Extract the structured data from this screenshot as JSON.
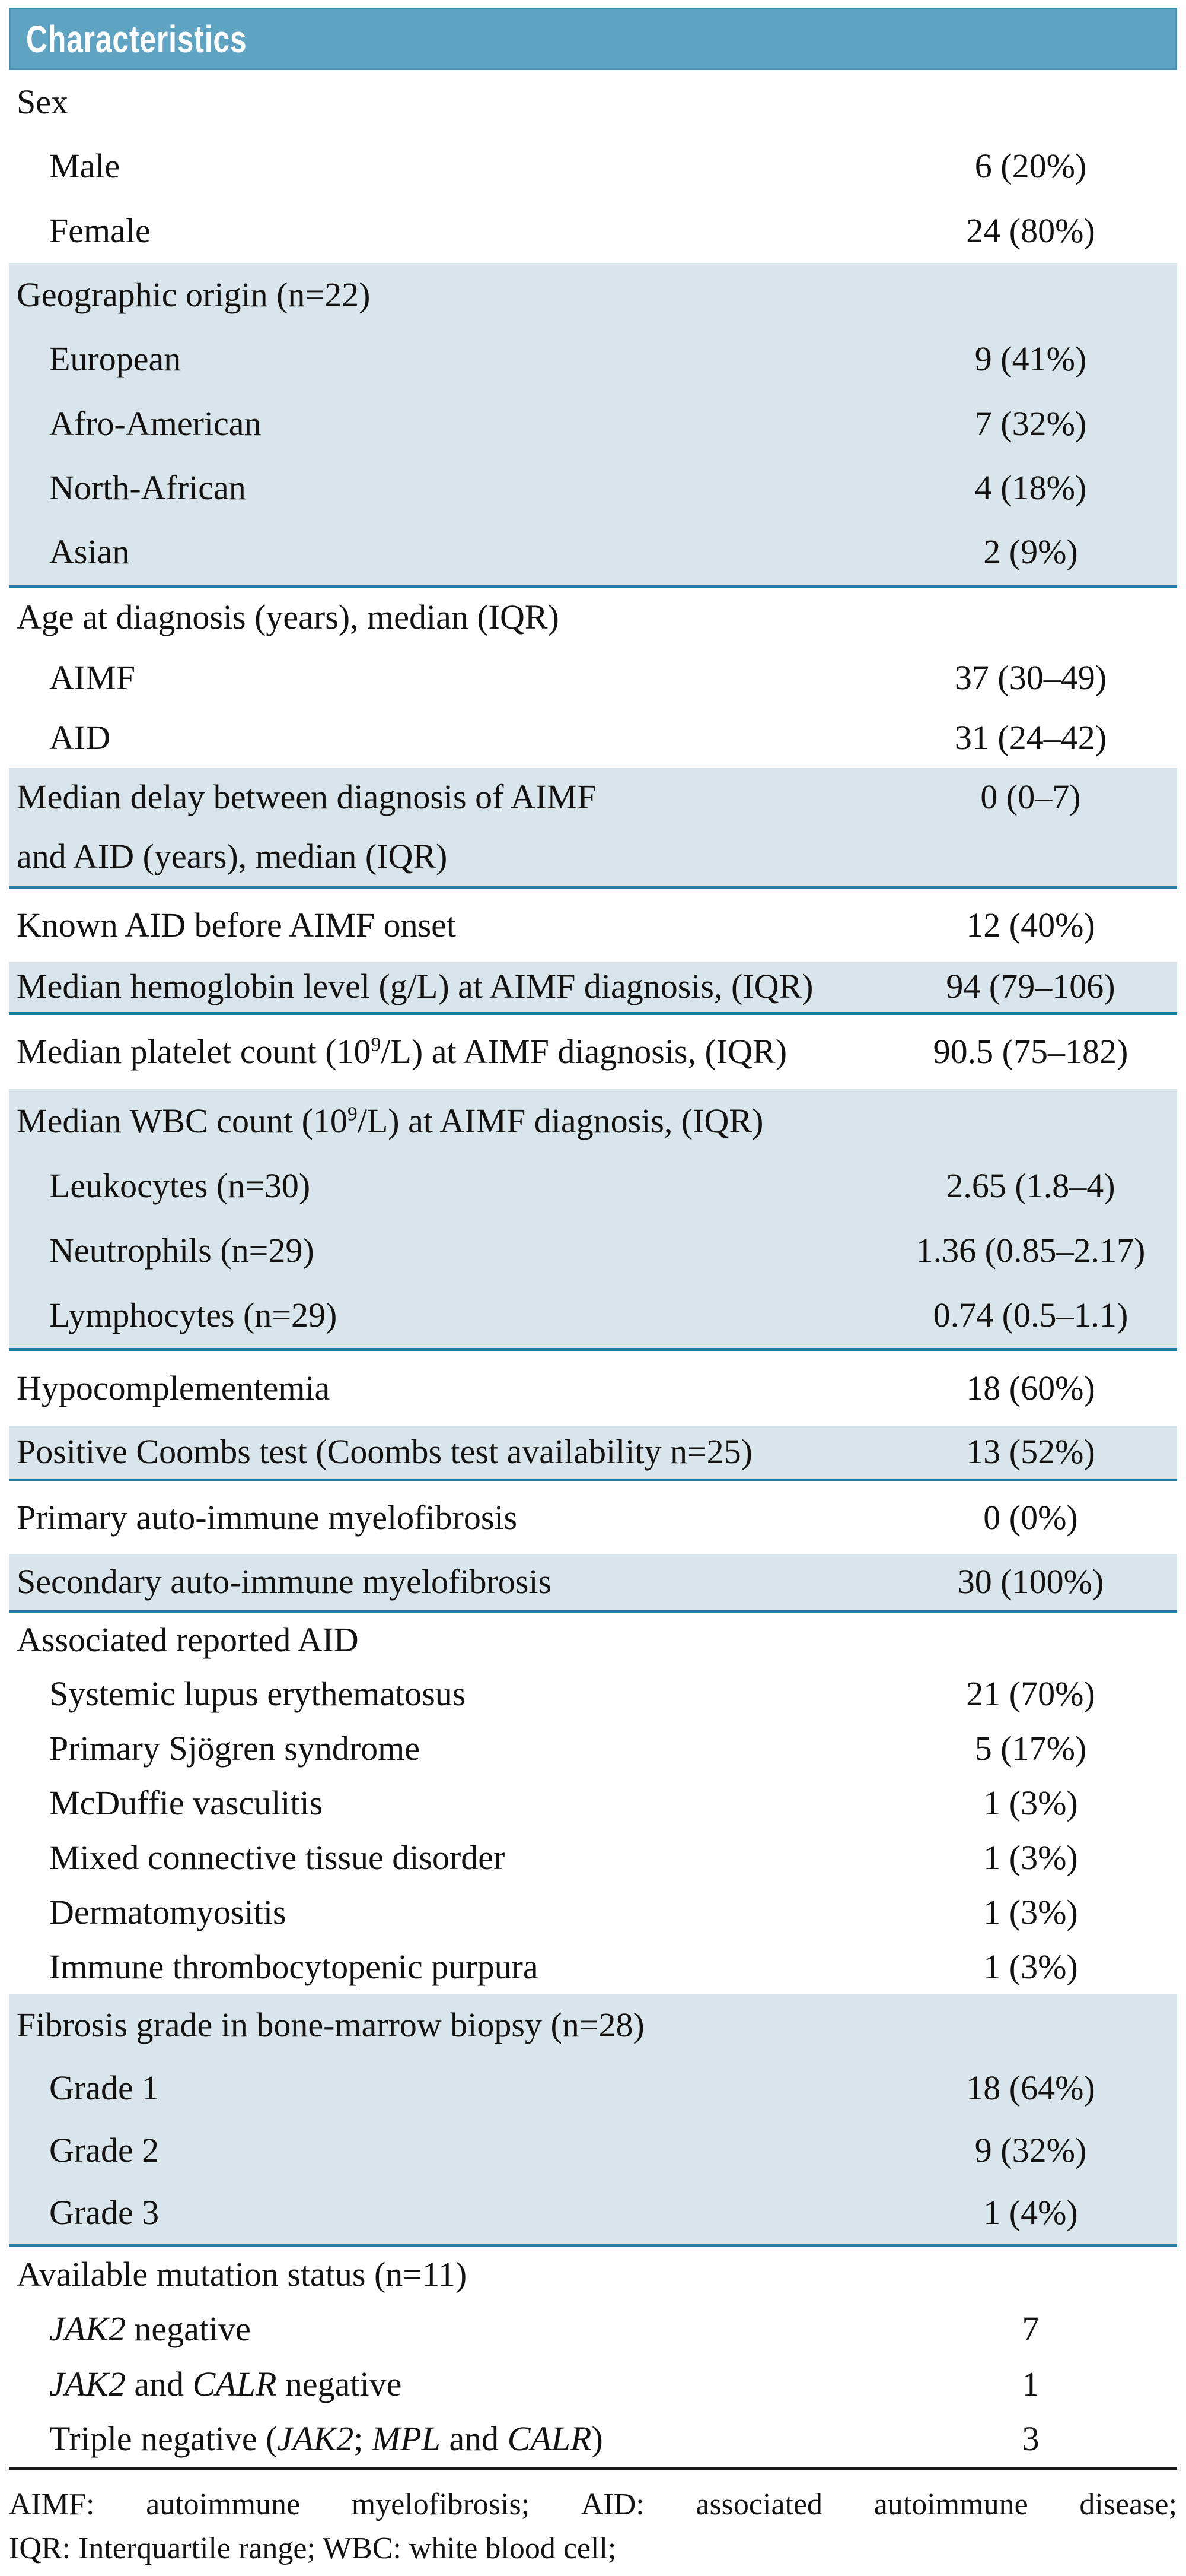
{
  "header": {
    "title": "Characteristics"
  },
  "colors": {
    "header_bar_bg": "#5fa3c2",
    "header_bar_border": "#4a90b2",
    "header_title_text": "#ffffff",
    "shaded_row_bg": "#d9e5eb",
    "divider_teal": "#217ca4",
    "divider_black": "#1a1a1a",
    "body_text": "#121212"
  },
  "sections": [
    {
      "shaded": false,
      "divider": "none",
      "rows": [
        {
          "label": "Sex",
          "value": "",
          "indent": 0
        },
        {
          "label": "Male",
          "value": "6 (20%)",
          "indent": 1
        },
        {
          "label": "Female",
          "value": "24 (80%)",
          "indent": 1
        }
      ]
    },
    {
      "shaded": true,
      "divider": "teal",
      "rows": [
        {
          "label": "Geographic origin (n=22)",
          "value": "",
          "indent": 0
        },
        {
          "label": "European",
          "value": "9 (41%)",
          "indent": 1
        },
        {
          "label": "Afro-American",
          "value": "7 (32%)",
          "indent": 1
        },
        {
          "label": "North-African",
          "value": "4 (18%)",
          "indent": 1
        },
        {
          "label": "Asian",
          "value": "2 (9%)",
          "indent": 1
        }
      ]
    },
    {
      "shaded": false,
      "divider": "none",
      "rows": [
        {
          "label": "Age at diagnosis (years), median (IQR)",
          "value": "",
          "indent": 0
        },
        {
          "label": "AIMF",
          "value": "37 (30–49)",
          "indent": 1
        },
        {
          "label": "AID",
          "value": "31 (24–42)",
          "indent": 1
        }
      ]
    },
    {
      "shaded": true,
      "divider": "teal",
      "rows": [
        {
          "label": "Median delay between diagnosis of AIMF",
          "value": "0 (0–7)",
          "indent": 0
        },
        {
          "label": "and AID (years), median (IQR)",
          "value": "",
          "indent": 0
        }
      ]
    },
    {
      "shaded": false,
      "divider": "none",
      "rows": [
        {
          "label": "Known AID before AIMF onset",
          "value": "12 (40%)",
          "indent": 0
        }
      ]
    },
    {
      "shaded": true,
      "divider": "teal",
      "rows": [
        {
          "label": "Median hemoglobin level (g/L) at AIMF diagnosis, (IQR)",
          "value": "94 (79–106)",
          "indent": 0
        }
      ]
    },
    {
      "shaded": false,
      "divider": "none",
      "rows": [
        {
          "parts": [
            {
              "t": "Median platelet count (10"
            },
            {
              "t": "9",
              "sup": true
            },
            {
              "t": "/L) at AIMF diagnosis, (IQR)"
            }
          ],
          "value": "90.5 (75–182)",
          "indent": 0
        }
      ]
    },
    {
      "shaded": true,
      "divider": "teal",
      "rows": [
        {
          "parts": [
            {
              "t": "Median WBC count (10"
            },
            {
              "t": "9",
              "sup": true
            },
            {
              "t": "/L) at AIMF diagnosis, (IQR)"
            }
          ],
          "value": "",
          "indent": 0
        },
        {
          "label": "Leukocytes (n=30)",
          "value": "2.65 (1.8–4)",
          "indent": 1
        },
        {
          "label": "Neutrophils (n=29)",
          "value": "1.36 (0.85–2.17)",
          "indent": 1
        },
        {
          "label": "Lymphocytes (n=29)",
          "value": "0.74 (0.5–1.1)",
          "indent": 1
        }
      ]
    },
    {
      "shaded": false,
      "divider": "none",
      "rows": [
        {
          "label": "Hypocomplementemia",
          "value": "18 (60%)",
          "indent": 0
        }
      ]
    },
    {
      "shaded": true,
      "divider": "teal",
      "rows": [
        {
          "label": "Positive Coombs test (Coombs test availability n=25)",
          "value": "13 (52%)",
          "indent": 0
        }
      ]
    },
    {
      "shaded": false,
      "divider": "none",
      "rows": [
        {
          "label": "Primary auto-immune myelofibrosis",
          "value": "0 (0%)",
          "indent": 0
        }
      ]
    },
    {
      "shaded": true,
      "divider": "teal",
      "rows": [
        {
          "label": "Secondary auto-immune myelofibrosis",
          "value": "30 (100%)",
          "indent": 0
        }
      ]
    },
    {
      "shaded": false,
      "divider": "none",
      "rows": [
        {
          "label": "Associated reported AID",
          "value": "",
          "indent": 0
        },
        {
          "label": "Systemic lupus erythematosus",
          "value": "21 (70%)",
          "indent": 1
        },
        {
          "label": "Primary Sjögren syndrome",
          "value": "5 (17%)",
          "indent": 1
        },
        {
          "label": "McDuffie vasculitis",
          "value": "1 (3%)",
          "indent": 1
        },
        {
          "label": "Mixed connective tissue disorder",
          "value": "1 (3%)",
          "indent": 1
        },
        {
          "label": "Dermatomyositis",
          "value": "1 (3%)",
          "indent": 1
        },
        {
          "label": "Immune thrombocytopenic purpura",
          "value": "1 (3%)",
          "indent": 1
        }
      ]
    },
    {
      "shaded": true,
      "divider": "teal",
      "rows": [
        {
          "label": "Fibrosis grade in bone-marrow biopsy (n=28)",
          "value": "",
          "indent": 0
        },
        {
          "label": "Grade 1",
          "value": "18 (64%)",
          "indent": 1
        },
        {
          "label": "Grade 2",
          "value": "9 (32%)",
          "indent": 1
        },
        {
          "label": "Grade 3",
          "value": "1 (4%)",
          "indent": 1
        }
      ]
    },
    {
      "shaded": false,
      "divider": "black",
      "rows": [
        {
          "label": "Available mutation status (n=11)",
          "value": "",
          "indent": 0
        },
        {
          "parts": [
            {
              "t": "JAK2",
              "i": true
            },
            {
              "t": " negative"
            }
          ],
          "value": "7",
          "indent": 1
        },
        {
          "parts": [
            {
              "t": "JAK2",
              "i": true
            },
            {
              "t": " and "
            },
            {
              "t": "CALR",
              "i": true
            },
            {
              "t": " negative"
            }
          ],
          "value": "1",
          "indent": 1
        },
        {
          "parts": [
            {
              "t": "Triple negative ("
            },
            {
              "t": "JAK2",
              "i": true
            },
            {
              "t": "; "
            },
            {
              "t": "MPL",
              "i": true
            },
            {
              "t": " and "
            },
            {
              "t": "CALR",
              "i": true
            },
            {
              "t": ")"
            }
          ],
          "value": "3",
          "indent": 1
        }
      ]
    }
  ],
  "footnote": {
    "line1": "AIMF: autoimmune myelofibrosis; AID: associated autoimmune disease;",
    "line2": "IQR: Interquartile range; WBC: white blood cell;"
  }
}
